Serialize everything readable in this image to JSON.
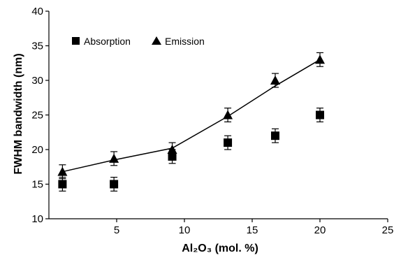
{
  "chart_data": {
    "type": "scatter",
    "xlabel": "Al₂O₃ (mol. %)",
    "ylabel": "FWHM bandwidth (nm)",
    "xlim": [
      0,
      25
    ],
    "ylim": [
      10,
      40
    ],
    "xticks": [
      "5",
      "10",
      "15",
      "20",
      "25"
    ],
    "yticks": [
      "10",
      "15",
      "20",
      "25",
      "30",
      "35",
      "40"
    ],
    "grid": false,
    "legend_position": "top-left",
    "series": [
      {
        "name": "Absorption",
        "marker": "square",
        "x": [
          1,
          4.8,
          9.1,
          13.2,
          16.7,
          20
        ],
        "y": [
          15,
          15,
          19,
          21,
          22,
          25
        ],
        "yerr": [
          1,
          1,
          1,
          1,
          1,
          1
        ]
      },
      {
        "name": "Emission",
        "marker": "triangle",
        "line": true,
        "x": [
          1,
          4.8,
          9.1,
          13.2,
          16.7,
          20
        ],
        "y": [
          16.8,
          18.7,
          20,
          25,
          30,
          33
        ],
        "yerr": [
          1,
          1,
          1,
          1,
          1,
          1
        ]
      }
    ],
    "fit_line": {
      "x": [
        1,
        4.8,
        9.1,
        13.2,
        16.7,
        20
      ],
      "y": [
        16.8,
        18.5,
        20.2,
        24.8,
        29.2,
        33
      ]
    }
  }
}
